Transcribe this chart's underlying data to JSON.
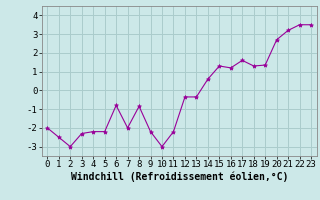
{
  "x": [
    0,
    1,
    2,
    3,
    4,
    5,
    6,
    7,
    8,
    9,
    10,
    11,
    12,
    13,
    14,
    15,
    16,
    17,
    18,
    19,
    20,
    21,
    22,
    23
  ],
  "y": [
    -2.0,
    -2.5,
    -3.0,
    -2.3,
    -2.2,
    -2.2,
    -0.8,
    -2.0,
    -0.85,
    -2.2,
    -3.0,
    -2.2,
    -0.35,
    -0.35,
    0.6,
    1.3,
    1.2,
    1.6,
    1.3,
    1.35,
    2.7,
    3.2,
    3.5,
    3.5
  ],
  "line_color": "#990099",
  "marker": "*",
  "marker_size": 3,
  "bg_color": "#cce8e8",
  "grid_color": "#aacccc",
  "xlabel": "Windchill (Refroidissement éolien,°C)",
  "xlabel_fontsize": 7,
  "ylim": [
    -3.5,
    4.5
  ],
  "xlim": [
    -0.5,
    23.5
  ],
  "yticks": [
    -3,
    -2,
    -1,
    0,
    1,
    2,
    3,
    4
  ],
  "xticks": [
    0,
    1,
    2,
    3,
    4,
    5,
    6,
    7,
    8,
    9,
    10,
    11,
    12,
    13,
    14,
    15,
    16,
    17,
    18,
    19,
    20,
    21,
    22,
    23
  ],
  "tick_fontsize": 6.5,
  "spine_color": "#888888"
}
